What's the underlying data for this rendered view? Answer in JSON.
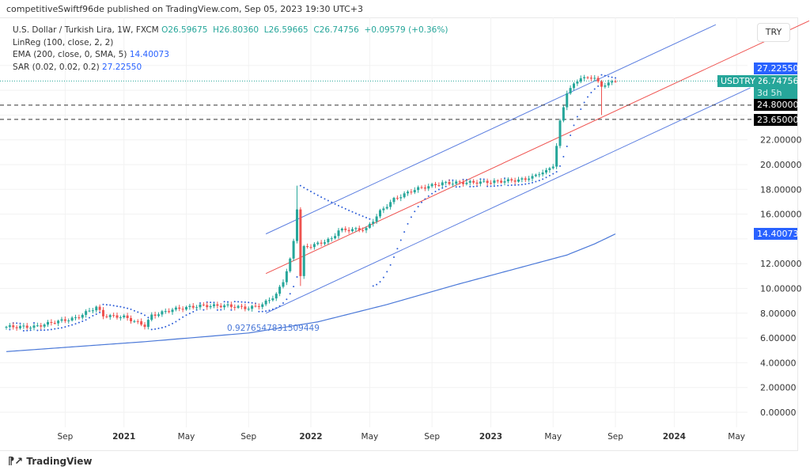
{
  "header": {
    "published": "competitiveSwiftf96de published on TradingView.com, Sep 05, 2023 19:30 UTC+3"
  },
  "legend": {
    "symbol": "U.S. Dollar / Turkish Lira, 1W, FXCM",
    "ohlc": "O26.59675  H26.80360  L26.59665  C26.74756  +0.09579 (+0.36%)",
    "linreg": "LinReg (100, close, 2, 2)",
    "ema": "EMA (200, close, 0, SMA, 5)",
    "ema_value": "14.40073",
    "sar": "SAR (0.02, 0.02, 0.2)",
    "sar_value": "27.22550"
  },
  "currency": "TRY",
  "price_labels": {
    "sar": "27.22550",
    "last": "26.74756",
    "countdown": "3d 5h",
    "symbol": "USDTRY",
    "ema": "14.40073",
    "level1": "24.80000",
    "level2": "23.65000"
  },
  "linreg_label": "0.9276547831509449",
  "footer": {
    "brand": "TradingView"
  },
  "colors": {
    "up": "#26a69a",
    "down": "#ef5350",
    "channel": "#5b7ee0",
    "mid": "#ef5350",
    "ema": "#4a78d8",
    "sar": "#2f5fd8",
    "sar_tag": "#2962ff"
  },
  "chart_data": {
    "type": "candlestick",
    "title": "U.S. Dollar / Turkish Lira, 1W, FXCM",
    "ylim": [
      0,
      27.5
    ],
    "yticks": [
      "0.00000",
      "2.00000",
      "4.00000",
      "6.00000",
      "8.00000",
      "10.00000",
      "12.00000",
      "16.00000",
      "18.00000",
      "20.00000",
      "22.00000"
    ],
    "xticks": [
      {
        "label": "Sep",
        "week": 17
      },
      {
        "label": "2021",
        "week": 34
      },
      {
        "label": "May",
        "week": 52
      },
      {
        "label": "Sep",
        "week": 70
      },
      {
        "label": "2022",
        "week": 88
      },
      {
        "label": "May",
        "week": 105
      },
      {
        "label": "Sep",
        "week": 123
      },
      {
        "label": "2023",
        "week": 140
      },
      {
        "label": "May",
        "week": 158
      },
      {
        "label": "Sep",
        "week": 176
      },
      {
        "label": "2024",
        "week": 193
      },
      {
        "label": "May",
        "week": 211
      }
    ],
    "weekly_close_keypoints": [
      [
        0,
        6.9
      ],
      [
        8,
        6.9
      ],
      [
        14,
        7.3
      ],
      [
        20,
        7.6
      ],
      [
        26,
        8.5
      ],
      [
        28,
        7.8
      ],
      [
        34,
        7.7
      ],
      [
        40,
        7.0
      ],
      [
        42,
        7.8
      ],
      [
        48,
        8.3
      ],
      [
        56,
        8.6
      ],
      [
        64,
        8.6
      ],
      [
        70,
        8.4
      ],
      [
        74,
        8.7
      ],
      [
        78,
        9.5
      ],
      [
        80,
        10.6
      ],
      [
        82,
        12.3
      ],
      [
        83,
        13.8
      ],
      [
        84,
        16.5
      ],
      [
        85,
        11.0
      ],
      [
        86,
        13.3
      ],
      [
        90,
        13.6
      ],
      [
        94,
        14.0
      ],
      [
        96,
        14.7
      ],
      [
        104,
        14.8
      ],
      [
        108,
        16.2
      ],
      [
        112,
        17.2
      ],
      [
        118,
        18.0
      ],
      [
        126,
        18.5
      ],
      [
        140,
        18.6
      ],
      [
        150,
        18.8
      ],
      [
        156,
        19.5
      ],
      [
        158,
        19.9
      ],
      [
        159,
        21.5
      ],
      [
        160,
        23.5
      ],
      [
        162,
        25.8
      ],
      [
        164,
        26.5
      ],
      [
        166,
        27.0
      ],
      [
        170,
        27.0
      ],
      [
        172,
        26.3
      ],
      [
        174,
        26.6
      ],
      [
        176,
        26.75
      ]
    ],
    "ema200_keypoints": [
      [
        0,
        4.9
      ],
      [
        40,
        5.7
      ],
      [
        70,
        6.4
      ],
      [
        90,
        7.3
      ],
      [
        110,
        8.7
      ],
      [
        130,
        10.3
      ],
      [
        150,
        11.8
      ],
      [
        162,
        12.7
      ],
      [
        170,
        13.6
      ],
      [
        176,
        14.4
      ]
    ],
    "linreg": {
      "start_week": 75,
      "mid_start": 11.2,
      "slope_per_week": 0.13,
      "band_offset": 3.2
    },
    "hlines": [
      24.8,
      23.65
    ],
    "last_price": 26.74756
  }
}
